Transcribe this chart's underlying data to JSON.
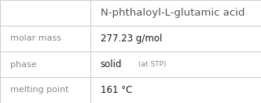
{
  "title": "N-phthaloyl-L-glutamic acid",
  "rows": [
    {
      "label": "molar mass",
      "value_main": "277.23 g/mol",
      "value_small": ""
    },
    {
      "label": "phase",
      "value_main": "solid",
      "value_small": "(at STP)"
    },
    {
      "label": "melting point",
      "value_main": "161 °C",
      "value_small": ""
    }
  ],
  "col_split": 0.345,
  "bg_color": "#ffffff",
  "line_color": "#cccccc",
  "label_fontsize": 8.0,
  "value_fontsize": 8.5,
  "small_fontsize": 6.5,
  "title_fontsize": 9.5,
  "label_color": "#888888",
  "value_color": "#1a1a1a",
  "title_color": "#555555"
}
